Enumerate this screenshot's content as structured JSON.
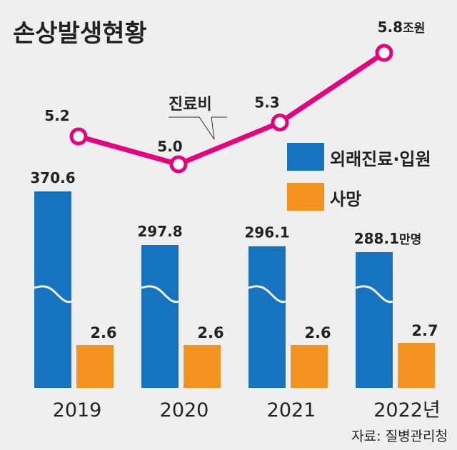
{
  "chart_data": {
    "type": "bar+line",
    "title": "손상발생현황",
    "categories": [
      "2019",
      "2020",
      "2021",
      "2022"
    ],
    "category_suffix_last": "년",
    "series": [
      {
        "name": "외래진료·입원",
        "type": "bar",
        "values": [
          370.6,
          297.8,
          296.1,
          288.1
        ],
        "labels": [
          "370.6",
          "297.8",
          "296.1",
          "288.1"
        ],
        "unit_label": "만명",
        "color": "#1673c0",
        "axis_break": true
      },
      {
        "name": "사망",
        "type": "bar",
        "values": [
          2.6,
          2.6,
          2.6,
          2.7
        ],
        "labels": [
          "2.6",
          "2.6",
          "2.6",
          "2.7"
        ],
        "color": "#f5931f"
      },
      {
        "name": "진료비",
        "type": "line",
        "values": [
          5.2,
          5.0,
          5.3,
          5.8
        ],
        "labels": [
          "5.2",
          "5.0",
          "5.3",
          "5.8"
        ],
        "unit_label": "조원",
        "color": "#e5007e"
      }
    ],
    "legend": {
      "placement": "right",
      "items": [
        "외래진료·입원",
        "사망"
      ]
    },
    "line_annotation": "진료비",
    "source": "자료: 질병관리청",
    "grid": false
  }
}
